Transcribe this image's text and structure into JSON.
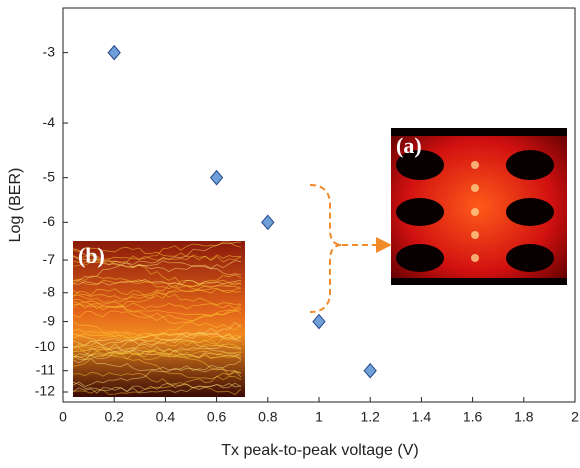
{
  "chart_data": {
    "type": "scatter",
    "x_label": "Tx peak-to-peak voltage (V)",
    "y_label": "Log (BER)",
    "x": [
      0.2,
      0.6,
      0.8,
      1,
      1.2
    ],
    "values": [
      -3,
      -5,
      -6,
      -9,
      -11
    ],
    "color": "#6f9fd8",
    "xlim": [
      0,
      2
    ],
    "xticks": [
      0,
      0.2,
      0.4,
      0.6,
      0.8,
      1,
      1.2,
      1.4,
      1.6,
      1.8,
      2
    ],
    "ylim": [
      -2.5,
      -12.5
    ],
    "yticks": [
      -3,
      -4,
      -5,
      -6,
      -7,
      -8,
      -9,
      -10,
      -11,
      -12
    ],
    "y_scale": "log-magnitude",
    "insets": [
      {
        "label": "(a)"
      },
      {
        "label": "(b)"
      }
    ]
  }
}
